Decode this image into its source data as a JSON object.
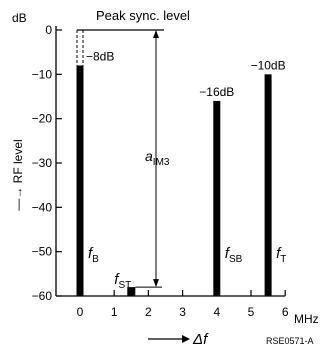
{
  "chart_data": {
    "type": "bar",
    "ylabel": "RF level",
    "yunit": "dB",
    "xlabel": "Δf",
    "xunit": "MHz",
    "reference_label": "Peak sync. level",
    "xlim": [
      -0.5,
      6
    ],
    "ylim": [
      -60,
      0
    ],
    "x_ticks": [
      0,
      1,
      2,
      3,
      4,
      5,
      6
    ],
    "y_ticks": [
      0,
      -10,
      -20,
      -30,
      -40,
      -50,
      -60
    ],
    "grid": false,
    "series": [
      {
        "name": "f_B",
        "x": 0.0,
        "value": -8,
        "data_label": "−8dB",
        "signal": "f",
        "subscript": "B"
      },
      {
        "name": "f_ST",
        "x": 1.5,
        "value": -58,
        "data_label": "",
        "signal": "f",
        "subscript": "ST"
      },
      {
        "name": "f_SB",
        "x": 4.0,
        "value": -16,
        "data_label": "−16dB",
        "signal": "f",
        "subscript": "SB"
      },
      {
        "name": "f_T",
        "x": 5.5,
        "value": -10,
        "data_label": "−10dB",
        "signal": "f",
        "subscript": "T"
      }
    ],
    "annotations": {
      "distance_label": "a",
      "distance_subscript": "IM3",
      "figure_id": "RSE0571-A"
    }
  },
  "labels": {
    "ylabel_prefix": "—→"
  }
}
